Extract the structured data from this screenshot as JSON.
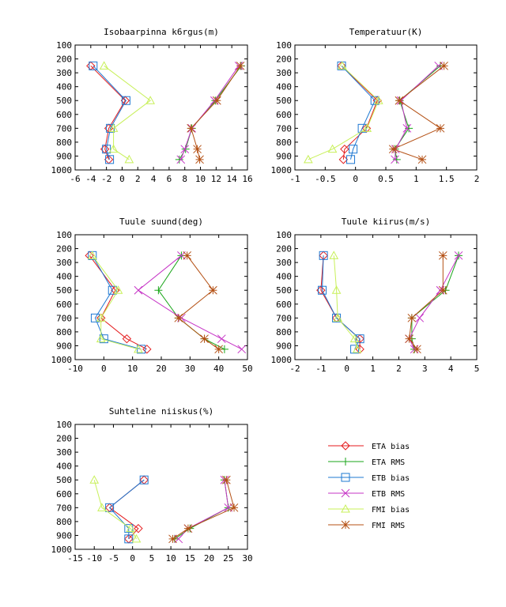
{
  "legend": [
    {
      "name": "ETA bias",
      "color": "#e41a1c",
      "marker": "diamond"
    },
    {
      "name": "ETA RMS",
      "color": "#1aa61a",
      "marker": "plus"
    },
    {
      "name": "ETB bias",
      "color": "#1e78d2",
      "marker": "square"
    },
    {
      "name": "ETB RMS",
      "color": "#c634c6",
      "marker": "cross"
    },
    {
      "name": "FMI bias",
      "color": "#c8f05a",
      "marker": "triangle"
    },
    {
      "name": "FMI RMS",
      "color": "#b45014",
      "marker": "star"
    }
  ],
  "chart_data": [
    {
      "type": "line",
      "title": "Isobaarpinna k6rgus(m)",
      "xlim": [
        -6,
        16
      ],
      "xticks": [
        -6,
        -4,
        -2,
        0,
        2,
        4,
        6,
        8,
        10,
        12,
        14,
        16
      ],
      "ylim": [
        1000,
        100
      ],
      "yticks": [
        100,
        200,
        300,
        400,
        500,
        600,
        700,
        800,
        900,
        1000
      ],
      "series": [
        {
          "name": "ETA bias",
          "points": [
            [
              -4.0,
              250
            ],
            [
              0.4,
              500
            ],
            [
              -1.7,
              700
            ],
            [
              -2.2,
              850
            ],
            [
              -1.7,
              925
            ]
          ]
        },
        {
          "name": "ETA RMS",
          "points": [
            [
              15.2,
              250
            ],
            [
              11.9,
              500
            ],
            [
              8.9,
              700
            ],
            [
              8.1,
              850
            ],
            [
              7.3,
              925
            ]
          ]
        },
        {
          "name": "ETB bias",
          "points": [
            [
              -3.7,
              250
            ],
            [
              0.5,
              500
            ],
            [
              -1.5,
              700
            ],
            [
              -2.0,
              850
            ],
            [
              -1.6,
              925
            ]
          ]
        },
        {
          "name": "ETB RMS",
          "points": [
            [
              14.9,
              250
            ],
            [
              11.8,
              500
            ],
            [
              8.9,
              700
            ],
            [
              8.0,
              850
            ],
            [
              7.5,
              925
            ]
          ]
        },
        {
          "name": "FMI bias",
          "points": [
            [
              -2.3,
              250
            ],
            [
              3.6,
              500
            ],
            [
              -1.1,
              700
            ],
            [
              -1.1,
              850
            ],
            [
              0.9,
              925
            ]
          ]
        },
        {
          "name": "FMI RMS",
          "points": [
            [
              15.1,
              250
            ],
            [
              12.1,
              500
            ],
            [
              8.8,
              700
            ],
            [
              9.6,
              850
            ],
            [
              9.9,
              925
            ]
          ]
        }
      ]
    },
    {
      "type": "line",
      "title": "Temperatuur(K)",
      "xlim": [
        -1,
        2
      ],
      "xticks": [
        -1,
        -0.5,
        0,
        0.5,
        1,
        1.5,
        2
      ],
      "ylim": [
        1000,
        100
      ],
      "yticks": [
        100,
        200,
        300,
        400,
        500,
        600,
        700,
        800,
        900,
        1000
      ],
      "series": [
        {
          "name": "ETA bias",
          "points": [
            [
              -0.23,
              250
            ],
            [
              0.36,
              500
            ],
            [
              0.18,
              700
            ],
            [
              -0.18,
              850
            ],
            [
              -0.2,
              925
            ]
          ]
        },
        {
          "name": "ETA RMS",
          "points": [
            [
              1.4,
              250
            ],
            [
              0.73,
              500
            ],
            [
              0.88,
              700
            ],
            [
              0.65,
              850
            ],
            [
              0.68,
              925
            ]
          ]
        },
        {
          "name": "ETB bias",
          "points": [
            [
              -0.23,
              250
            ],
            [
              0.32,
              500
            ],
            [
              0.11,
              700
            ],
            [
              -0.04,
              850
            ],
            [
              -0.08,
              925
            ]
          ]
        },
        {
          "name": "ETB RMS",
          "points": [
            [
              1.37,
              250
            ],
            [
              0.75,
              500
            ],
            [
              0.85,
              700
            ],
            [
              0.66,
              850
            ],
            [
              0.65,
              925
            ]
          ]
        },
        {
          "name": "FMI bias",
          "points": [
            [
              -0.22,
              250
            ],
            [
              0.38,
              500
            ],
            [
              0.19,
              700
            ],
            [
              -0.38,
              850
            ],
            [
              -0.78,
              925
            ]
          ]
        },
        {
          "name": "FMI RMS",
          "points": [
            [
              1.46,
              250
            ],
            [
              0.72,
              500
            ],
            [
              1.4,
              700
            ],
            [
              0.62,
              850
            ],
            [
              1.1,
              925
            ]
          ]
        }
      ]
    },
    {
      "type": "line",
      "title": "Tuule suund(deg)",
      "xlim": [
        -10,
        50
      ],
      "xticks": [
        -10,
        0,
        10,
        20,
        30,
        40,
        50
      ],
      "ylim": [
        1000,
        100
      ],
      "yticks": [
        100,
        200,
        300,
        400,
        500,
        600,
        700,
        800,
        900,
        1000
      ],
      "series": [
        {
          "name": "ETA bias",
          "points": [
            [
              -5,
              250
            ],
            [
              4,
              500
            ],
            [
              -1,
              700
            ],
            [
              8,
              850
            ],
            [
              15,
              925
            ]
          ]
        },
        {
          "name": "ETA RMS",
          "points": [
            [
              27,
              250
            ],
            [
              19,
              500
            ],
            [
              26,
              700
            ],
            [
              35,
              850
            ],
            [
              42,
              925
            ]
          ]
        },
        {
          "name": "ETB bias",
          "points": [
            [
              -4,
              250
            ],
            [
              3,
              500
            ],
            [
              -3,
              700
            ],
            [
              0,
              850
            ],
            [
              13,
              925
            ]
          ]
        },
        {
          "name": "ETB RMS",
          "points": [
            [
              27,
              250
            ],
            [
              12,
              500
            ],
            [
              27,
              700
            ],
            [
              41,
              850
            ],
            [
              48,
              925
            ]
          ]
        },
        {
          "name": "FMI bias",
          "points": [
            [
              -4,
              250
            ],
            [
              5,
              500
            ],
            [
              -1,
              700
            ],
            [
              -1,
              850
            ],
            [
              12,
              925
            ]
          ]
        },
        {
          "name": "FMI RMS",
          "points": [
            [
              29,
              250
            ],
            [
              38,
              500
            ],
            [
              26,
              700
            ],
            [
              35,
              850
            ],
            [
              40,
              925
            ]
          ]
        }
      ]
    },
    {
      "type": "line",
      "title": "Tuule kiirus(m/s)",
      "xlim": [
        -2,
        5
      ],
      "xticks": [
        -2,
        -1,
        0,
        1,
        2,
        3,
        4,
        5
      ],
      "ylim": [
        1000,
        100
      ],
      "yticks": [
        100,
        200,
        300,
        400,
        500,
        600,
        700,
        800,
        900,
        1000
      ],
      "series": [
        {
          "name": "ETA bias",
          "points": [
            [
              -0.9,
              250
            ],
            [
              -1.0,
              500
            ],
            [
              -0.4,
              700
            ],
            [
              0.5,
              850
            ],
            [
              0.5,
              925
            ]
          ]
        },
        {
          "name": "ETA RMS",
          "points": [
            [
              4.3,
              250
            ],
            [
              3.8,
              500
            ],
            [
              2.5,
              700
            ],
            [
              2.5,
              850
            ],
            [
              2.6,
              925
            ]
          ]
        },
        {
          "name": "ETB bias",
          "points": [
            [
              -0.9,
              250
            ],
            [
              -0.95,
              500
            ],
            [
              -0.4,
              700
            ],
            [
              0.5,
              850
            ],
            [
              0.3,
              925
            ]
          ]
        },
        {
          "name": "ETB RMS",
          "points": [
            [
              4.3,
              250
            ],
            [
              3.6,
              500
            ],
            [
              2.8,
              700
            ],
            [
              2.4,
              850
            ],
            [
              2.6,
              925
            ]
          ]
        },
        {
          "name": "FMI bias",
          "points": [
            [
              -0.5,
              250
            ],
            [
              -0.4,
              500
            ],
            [
              -0.35,
              700
            ],
            [
              0.3,
              850
            ],
            [
              0.4,
              925
            ]
          ]
        },
        {
          "name": "FMI RMS",
          "points": [
            [
              3.7,
              250
            ],
            [
              3.7,
              500
            ],
            [
              2.5,
              700
            ],
            [
              2.4,
              850
            ],
            [
              2.7,
              925
            ]
          ]
        }
      ]
    },
    {
      "type": "line",
      "title": "Suhteline niiskus(%)",
      "xlim": [
        -15,
        30
      ],
      "xticks": [
        -15,
        -10,
        -5,
        0,
        5,
        10,
        15,
        20,
        25,
        30
      ],
      "ylim": [
        1000,
        100
      ],
      "yticks": [
        100,
        200,
        300,
        400,
        500,
        600,
        700,
        800,
        900,
        1000
      ],
      "series": [
        {
          "name": "ETA bias",
          "points": [
            [
              3,
              500
            ],
            [
              -6,
              700
            ],
            [
              1.5,
              850
            ],
            [
              -1,
              925
            ]
          ]
        },
        {
          "name": "ETA RMS",
          "points": [
            [
              24,
              500
            ],
            [
              25,
              700
            ],
            [
              15,
              850
            ],
            [
              11,
              925
            ]
          ]
        },
        {
          "name": "ETB bias",
          "points": [
            [
              3,
              500
            ],
            [
              -6,
              700
            ],
            [
              -1,
              850
            ],
            [
              -1,
              925
            ]
          ]
        },
        {
          "name": "ETB RMS",
          "points": [
            [
              24,
              500
            ],
            [
              25,
              700
            ],
            [
              14.5,
              850
            ],
            [
              12,
              925
            ]
          ]
        },
        {
          "name": "FMI bias",
          "points": [
            [
              -10,
              500
            ],
            [
              -8,
              700
            ],
            [
              -0.5,
              850
            ],
            [
              1,
              925
            ]
          ]
        },
        {
          "name": "FMI RMS",
          "points": [
            [
              24.5,
              500
            ],
            [
              26.5,
              700
            ],
            [
              14.5,
              850
            ],
            [
              10.5,
              925
            ]
          ]
        }
      ]
    }
  ]
}
